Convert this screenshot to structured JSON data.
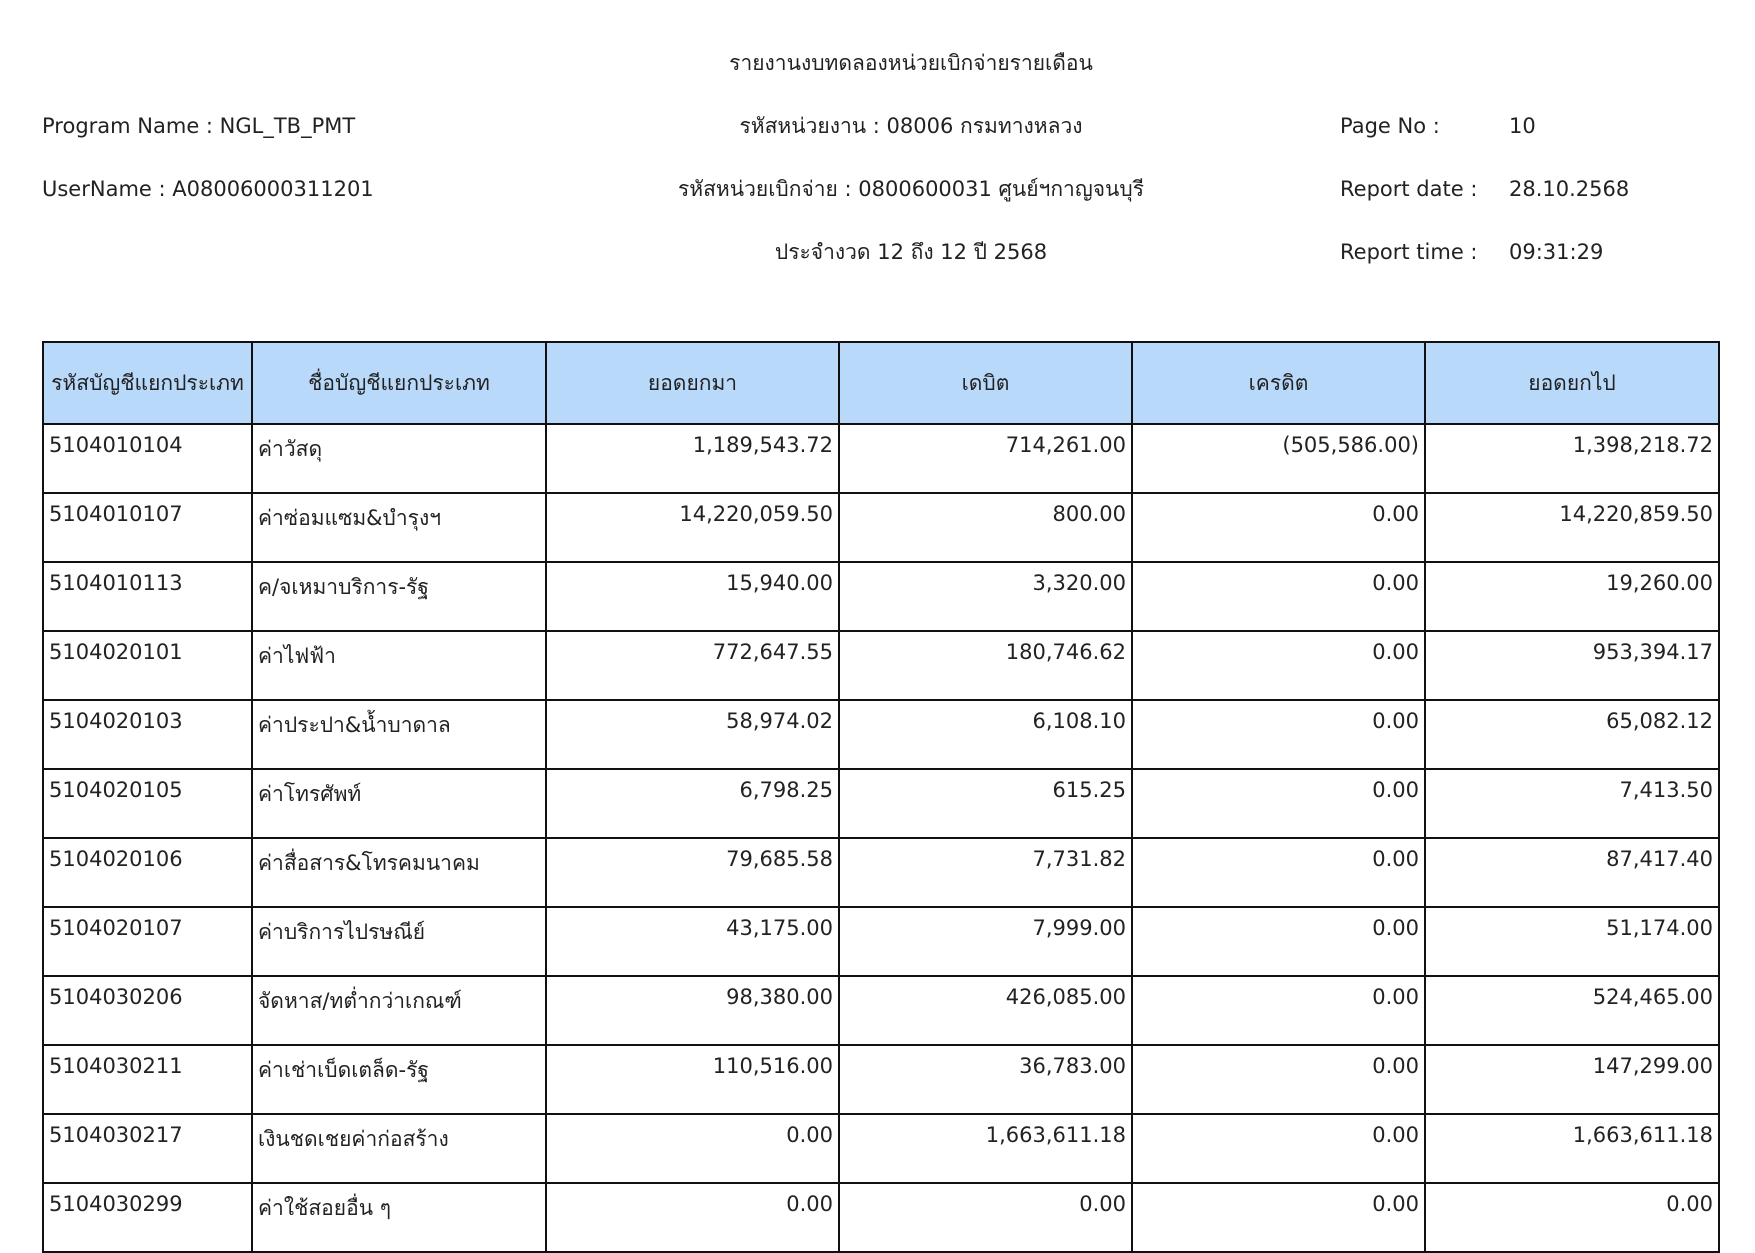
{
  "report": {
    "title": "รายงานงบทดลองหน่วยเบิกจ่ายรายเดือน",
    "program_name": "Program Name : NGL_TB_PMT",
    "username": "UserName : A08006000311201",
    "agency": "รหัสหน่วยงาน : 08006 กรมทางหลวง",
    "disbursing_unit": "รหัสหน่วยเบิกจ่าย : 0800600031 ศูนย์ฯกาญจนบุรี",
    "period": "ประจำงวด 12 ถึง 12 ปี 2568",
    "page_no_label": "Page No :",
    "page_no": "10",
    "report_date_label": "Report date :",
    "report_date": "28.10.2568",
    "report_time_label": "Report time :",
    "report_time": "09:31:29"
  },
  "table": {
    "header_color": "#b9d9fb",
    "columns": [
      "รหัสบัญชีแยกประเภท",
      "ชื่อบัญชีแยกประเภท",
      "ยอดยกมา",
      "เดบิต",
      "เครดิต",
      "ยอดยกไป"
    ],
    "rows": [
      [
        "5104010104",
        "ค่าวัสดุ",
        "1,189,543.72",
        "714,261.00",
        "(505,586.00)",
        "1,398,218.72"
      ],
      [
        "5104010107",
        "ค่าซ่อมแซม&บำรุงฯ",
        "14,220,059.50",
        "800.00",
        "0.00",
        "14,220,859.50"
      ],
      [
        "5104010113",
        "ค/จเหมาบริการ-รัฐ",
        "15,940.00",
        "3,320.00",
        "0.00",
        "19,260.00"
      ],
      [
        "5104020101",
        "ค่าไฟฟ้า",
        "772,647.55",
        "180,746.62",
        "0.00",
        "953,394.17"
      ],
      [
        "5104020103",
        "ค่าประปา&น้ำบาดาล",
        "58,974.02",
        "6,108.10",
        "0.00",
        "65,082.12"
      ],
      [
        "5104020105",
        "ค่าโทรศัพท์",
        "6,798.25",
        "615.25",
        "0.00",
        "7,413.50"
      ],
      [
        "5104020106",
        "ค่าสื่อสาร&โทรคมนาคม",
        "79,685.58",
        "7,731.82",
        "0.00",
        "87,417.40"
      ],
      [
        "5104020107",
        "ค่าบริการไปรษณีย์",
        "43,175.00",
        "7,999.00",
        "0.00",
        "51,174.00"
      ],
      [
        "5104030206",
        "จัดหาส/ทต่ำกว่าเกณฑ์",
        "98,380.00",
        "426,085.00",
        "0.00",
        "524,465.00"
      ],
      [
        "5104030211",
        "ค่าเช่าเบ็ดเตล็ด-รัฐ",
        "110,516.00",
        "36,783.00",
        "0.00",
        "147,299.00"
      ],
      [
        "5104030217",
        "เงินชดเชยค่าก่อสร้าง",
        "0.00",
        "1,663,611.18",
        "0.00",
        "1,663,611.18"
      ],
      [
        "5104030299",
        "ค่าใช้สอยอื่น ๆ",
        "0.00",
        "0.00",
        "0.00",
        "0.00"
      ]
    ]
  }
}
